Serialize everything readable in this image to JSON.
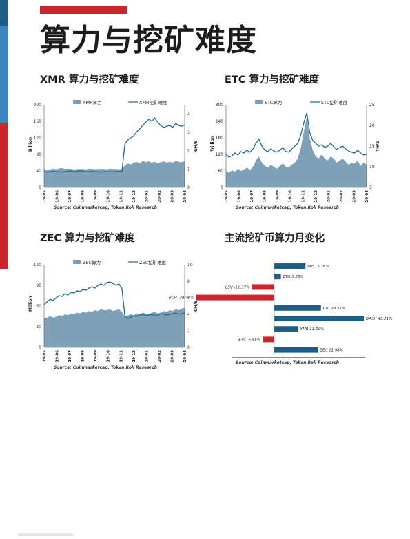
{
  "page": {
    "title": "算力与挖矿难度"
  },
  "charts": {
    "xmr": {
      "title": "XMR 算力与挖矿难度"
    },
    "etc": {
      "title": "ETC 算力与挖矿难度"
    },
    "zec": {
      "title": "ZEC 算力与挖矿难度"
    },
    "monthly": {
      "title": "主流挖矿币算力月变化"
    }
  },
  "colors": {
    "area": "#7fa1b8",
    "line": "#1d6a86",
    "bar_pos": "#1f5d86",
    "bar_neg": "#c8262b"
  },
  "chart_data": [
    {
      "type": "area",
      "title": "XMR 算力与挖矿难度",
      "ylabel": "Billion",
      "y2label": "GH/S",
      "ylim": [
        0,
        200
      ],
      "y2lim": [
        0,
        4.5
      ],
      "yticks": [
        "0",
        "40",
        "80",
        "120",
        "160",
        "200"
      ],
      "y2ticks": [
        "0",
        "1",
        "2",
        "3",
        "4"
      ],
      "xticks": [
        "19-05",
        "19-06",
        "19-07",
        "19-08",
        "19-09",
        "19-10",
        "19-11",
        "19-12",
        "20-01",
        "20-02",
        "20-03",
        "20-04"
      ],
      "series": [
        {
          "name": "XMR算力",
          "kind": "area",
          "values": [
            1.0,
            0.95,
            0.98,
            1.02,
            0.99,
            1.03,
            1.05,
            1.0,
            1.02,
            1.0,
            0.98,
            1.0,
            0.99,
            1.01,
            0.98,
            1.02,
            1.0,
            0.99,
            1.01,
            1.0,
            1.0,
            0.98,
            1.02,
            1.0,
            1.01,
            0.99,
            1.0,
            1.2,
            1.3,
            1.25,
            1.35,
            1.4,
            1.3,
            1.45,
            1.38,
            1.42,
            1.35,
            1.4,
            1.3,
            1.38,
            1.42,
            1.36,
            1.4,
            1.35,
            1.44,
            1.4,
            1.38,
            1.42
          ]
        },
        {
          "name": "XMR挖矿难度",
          "kind": "line",
          "values": [
            38,
            37,
            38,
            39,
            38,
            38,
            37,
            38,
            39,
            40,
            38,
            39,
            41,
            39,
            38,
            38,
            39,
            38,
            38,
            37,
            38,
            38,
            38,
            38,
            38,
            39,
            38,
            105,
            115,
            120,
            125,
            135,
            142,
            150,
            158,
            165,
            160,
            168,
            158,
            150,
            145,
            148,
            150,
            145,
            155,
            150,
            148,
            152
          ]
        }
      ],
      "source": "Source: Coinmarketcap, Token Roll Research"
    },
    {
      "type": "area",
      "title": "ETC 算力与挖矿难度",
      "ylabel": "Trillion",
      "y2label": "TH/S",
      "ylim": [
        0,
        300
      ],
      "y2lim": [
        5,
        25
      ],
      "yticks": [
        "0",
        "60",
        "120",
        "180",
        "240",
        "300"
      ],
      "y2ticks": [
        "5",
        "10",
        "15",
        "20",
        "25"
      ],
      "xticks": [
        "19-05",
        "19-06",
        "19-07",
        "19-08",
        "19-09",
        "19-10",
        "19-11",
        "19-12",
        "20-01",
        "20-02",
        "20-03",
        "20-04"
      ],
      "series": [
        {
          "name": "ETC算力",
          "kind": "area",
          "values": [
            9.0,
            8.5,
            9.2,
            8.8,
            9.5,
            9.0,
            9.3,
            9.8,
            9.2,
            10.0,
            11.5,
            12.5,
            11.0,
            10.2,
            9.8,
            10.5,
            10.0,
            9.5,
            10.2,
            10.8,
            10.0,
            9.8,
            10.5,
            11.0,
            12.0,
            14.5,
            18.5,
            22.0,
            17.0,
            14.0,
            12.5,
            12.0,
            13.0,
            12.0,
            11.5,
            12.5,
            12.0,
            11.0,
            11.5,
            12.0,
            11.2,
            10.5,
            11.0,
            10.8,
            11.5,
            10.2,
            11.0,
            10.5
          ]
        },
        {
          "name": "ETC挖矿难度",
          "kind": "line",
          "values": [
            120,
            110,
            115,
            125,
            118,
            130,
            125,
            135,
            128,
            140,
            160,
            175,
            150,
            135,
            130,
            140,
            132,
            128,
            135,
            145,
            130,
            128,
            140,
            150,
            160,
            190,
            235,
            270,
            200,
            170,
            160,
            150,
            155,
            145,
            150,
            160,
            148,
            138,
            145,
            150,
            140,
            132,
            128,
            125,
            135,
            125,
            118,
            120
          ]
        }
      ],
      "source": "Source: Coinmarketcap, Token Roll Research"
    },
    {
      "type": "area",
      "title": "ZEC 算力与挖矿难度",
      "ylabel": "Million",
      "y2label": "GH/S",
      "ylim": [
        0,
        120
      ],
      "y2lim": [
        0,
        10
      ],
      "yticks": [
        "0",
        "30",
        "60",
        "90",
        "120"
      ],
      "y2ticks": [
        "0",
        "2",
        "4",
        "6",
        "8",
        "10"
      ],
      "xticks": [
        "19-05",
        "19-06",
        "19-07",
        "19-08",
        "19-09",
        "19-10",
        "19-11",
        "19-12",
        "20-01",
        "20-02",
        "20-03",
        "20-04"
      ],
      "series": [
        {
          "name": "ZEC算力",
          "kind": "area",
          "values": [
            3.5,
            3.6,
            3.8,
            3.6,
            3.7,
            3.9,
            3.8,
            4.0,
            3.9,
            4.1,
            4.0,
            4.2,
            4.1,
            4.3,
            4.2,
            4.4,
            4.3,
            4.5,
            4.4,
            4.6,
            4.5,
            4.5,
            4.6,
            4.4,
            4.5,
            4.6,
            4.3,
            3.7,
            3.9,
            4.0,
            3.9,
            4.1,
            4.0,
            4.2,
            4.1,
            4.0,
            4.2,
            4.3,
            4.1,
            4.2,
            4.4,
            4.3,
            4.5,
            4.4,
            4.6,
            4.5,
            4.7,
            4.8
          ]
        },
        {
          "name": "ZEC挖矿难度",
          "kind": "line",
          "values": [
            62,
            66,
            70,
            68,
            72,
            75,
            74,
            78,
            76,
            80,
            79,
            82,
            81,
            84,
            83,
            86,
            88,
            86,
            90,
            92,
            90,
            94,
            95,
            93,
            90,
            92,
            86,
            45,
            42,
            44,
            46,
            45,
            47,
            48,
            46,
            47,
            48,
            46,
            47,
            49,
            48,
            47,
            48,
            49,
            50,
            48,
            49,
            50
          ]
        }
      ],
      "source": "Source: Coinmarketcap, Token Roll Research"
    },
    {
      "type": "bar",
      "orientation": "horizontal",
      "title": "主流挖矿币算力月变化",
      "categories": [
        "btc",
        "ETH",
        "BSV",
        "BCH",
        "LTC",
        "DASH",
        "XMR",
        "ETC",
        "ZEC"
      ],
      "values": [
        15.76,
        3.35,
        -11.37,
        -39.47,
        23.57,
        45.21,
        11.9,
        -5.85,
        21.98
      ],
      "labels": [
        "btc 15.76%",
        "ETH 3.35%",
        "BSV -11.37%",
        "BCH -39.47%",
        "LTC 23.57%",
        "DASH 45.21%",
        "XMR 11.90%",
        "ETC -5.85%",
        "ZEC 21.98%"
      ],
      "source": "Source: Coinmarketcap, Token Roll Research"
    }
  ]
}
